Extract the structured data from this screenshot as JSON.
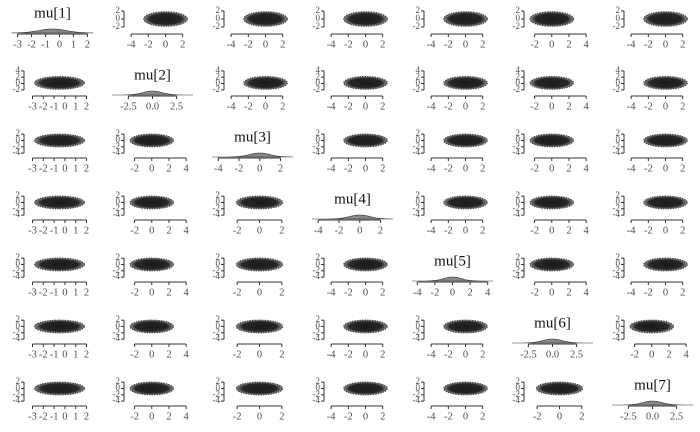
{
  "chart_data": [
    {
      "type": "density",
      "title": "mu[1]",
      "xlim": [
        -3.4,
        2.4
      ],
      "xticks": [
        -3,
        -2,
        -1,
        0,
        1,
        2
      ],
      "mean": -0.5,
      "sd": 1
    },
    {
      "type": "scatter",
      "xlim": [
        -4.6,
        3.2
      ],
      "xticks": [
        -4,
        -2,
        0,
        2
      ],
      "ylim": [
        -3,
        3
      ],
      "yticks": [
        -2,
        0,
        2
      ],
      "center": [
        0,
        0
      ],
      "spread": [
        1.1,
        0.9
      ]
    },
    {
      "type": "scatter",
      "xlim": [
        -4.6,
        3.2
      ],
      "xticks": [
        -4,
        -2,
        0,
        2
      ],
      "ylim": [
        -3,
        3
      ],
      "yticks": [
        -2,
        0,
        2
      ],
      "center": [
        0,
        0
      ],
      "spread": [
        1.1,
        0.9
      ]
    },
    {
      "type": "scatter",
      "xlim": [
        -4.6,
        3.2
      ],
      "xticks": [
        -4,
        -2,
        0,
        2
      ],
      "ylim": [
        -3,
        3
      ],
      "yticks": [
        -2,
        0,
        2
      ],
      "center": [
        0,
        0
      ],
      "spread": [
        1.1,
        0.9
      ]
    },
    {
      "type": "scatter",
      "xlim": [
        -4.6,
        3.2
      ],
      "xticks": [
        -4,
        -2,
        0,
        2
      ],
      "ylim": [
        -3,
        3
      ],
      "yticks": [
        -2,
        0,
        2
      ],
      "center": [
        0,
        0
      ],
      "spread": [
        1.1,
        0.9
      ]
    },
    {
      "type": "scatter",
      "xlim": [
        -3,
        4.8
      ],
      "xticks": [
        -2,
        0,
        2,
        4
      ],
      "ylim": [
        -3,
        3
      ],
      "yticks": [
        -2,
        0,
        2
      ],
      "center": [
        0,
        0
      ],
      "spread": [
        1.1,
        0.9
      ]
    },
    {
      "type": "scatter",
      "xlim": [
        -4.6,
        3.2
      ],
      "xticks": [
        -4,
        -2,
        0,
        2
      ],
      "ylim": [
        -3,
        3
      ],
      "yticks": [
        -2,
        0,
        2
      ],
      "center": [
        0,
        0
      ],
      "spread": [
        1.1,
        0.9
      ]
    },
    {
      "type": "scatter",
      "xlim": [
        -3.6,
        2.6
      ],
      "xticks": [
        -3,
        -2,
        -1,
        0,
        1,
        2
      ],
      "ylim": [
        -3,
        4.6
      ],
      "yticks": [
        -2,
        0,
        2,
        4
      ],
      "center": [
        -0.5,
        0.2
      ],
      "spread": [
        1,
        1
      ]
    },
    {
      "type": "density",
      "title": "mu[2]",
      "xlim": [
        -4.2,
        4.2
      ],
      "xticks": [
        -2.5,
        {
          "value": 0,
          "label": "0.0"
        },
        2.5
      ],
      "mean": 0,
      "sd": 1
    },
    {
      "type": "scatter",
      "xlim": [
        -4.6,
        3.2
      ],
      "xticks": [
        -4,
        -2,
        0,
        2
      ],
      "ylim": [
        -3,
        4.6
      ],
      "yticks": [
        -2,
        0,
        2,
        4
      ],
      "center": [
        0,
        0.2
      ],
      "spread": [
        1.1,
        1
      ]
    },
    {
      "type": "scatter",
      "xlim": [
        -4.6,
        3.2
      ],
      "xticks": [
        -4,
        -2,
        0,
        2
      ],
      "ylim": [
        -3,
        4.6
      ],
      "yticks": [
        -2,
        0,
        2,
        4
      ],
      "center": [
        0,
        0.2
      ],
      "spread": [
        1.1,
        1
      ]
    },
    {
      "type": "scatter",
      "xlim": [
        -4.6,
        3.2
      ],
      "xticks": [
        -4,
        -2,
        0,
        2
      ],
      "ylim": [
        -3,
        4.6
      ],
      "yticks": [
        -2,
        0,
        2,
        4
      ],
      "center": [
        0,
        0.2
      ],
      "spread": [
        1.1,
        1
      ]
    },
    {
      "type": "scatter",
      "xlim": [
        -3,
        4.8
      ],
      "xticks": [
        -2,
        0,
        2,
        4
      ],
      "ylim": [
        -3,
        4.6
      ],
      "yticks": [
        -2,
        0,
        2,
        4
      ],
      "center": [
        0,
        0.2
      ],
      "spread": [
        1.1,
        1
      ]
    },
    {
      "type": "scatter",
      "xlim": [
        -4.6,
        3.2
      ],
      "xticks": [
        -4,
        -2,
        0,
        2
      ],
      "ylim": [
        -3,
        4.6
      ],
      "yticks": [
        -2,
        0,
        2,
        4
      ],
      "center": [
        0,
        0.2
      ],
      "spread": [
        1.1,
        1
      ]
    },
    {
      "type": "scatter",
      "xlim": [
        -3.6,
        2.6
      ],
      "xticks": [
        -3,
        -2,
        -1,
        0,
        1,
        2
      ],
      "ylim": [
        -4.6,
        3
      ],
      "yticks": [
        -4,
        -2,
        0,
        2
      ],
      "center": [
        -0.5,
        0
      ],
      "spread": [
        1,
        1
      ]
    },
    {
      "type": "scatter",
      "xlim": [
        -3,
        4.8
      ],
      "xticks": [
        -2,
        0,
        2,
        4
      ],
      "ylim": [
        -4.6,
        3
      ],
      "yticks": [
        -4,
        -2,
        0,
        2
      ],
      "center": [
        0,
        0
      ],
      "spread": [
        1.1,
        1
      ]
    },
    {
      "type": "density",
      "title": "mu[3]",
      "xlim": [
        -4.6,
        3.2
      ],
      "xticks": [
        -4,
        -2,
        0,
        2
      ],
      "mean": 0,
      "sd": 1
    },
    {
      "type": "scatter",
      "xlim": [
        -4.6,
        3.2
      ],
      "xticks": [
        -4,
        -2,
        0,
        2
      ],
      "ylim": [
        -4.6,
        3
      ],
      "yticks": [
        -4,
        -2,
        0,
        2
      ],
      "center": [
        0,
        0
      ],
      "spread": [
        1.1,
        1
      ]
    },
    {
      "type": "scatter",
      "xlim": [
        -4.6,
        3.2
      ],
      "xticks": [
        -4,
        -2,
        0,
        2
      ],
      "ylim": [
        -4.6,
        3
      ],
      "yticks": [
        -4,
        -2,
        0,
        2
      ],
      "center": [
        0,
        0
      ],
      "spread": [
        1.1,
        1
      ]
    },
    {
      "type": "scatter",
      "xlim": [
        -3,
        4.8
      ],
      "xticks": [
        -2,
        0,
        2,
        4
      ],
      "ylim": [
        -4.6,
        3
      ],
      "yticks": [
        -4,
        -2,
        0,
        2
      ],
      "center": [
        0,
        0
      ],
      "spread": [
        1.1,
        1
      ]
    },
    {
      "type": "scatter",
      "xlim": [
        -4.6,
        3.2
      ],
      "xticks": [
        -4,
        -2,
        0,
        2
      ],
      "ylim": [
        -4.6,
        3
      ],
      "yticks": [
        -4,
        -2,
        0,
        2
      ],
      "center": [
        0,
        0
      ],
      "spread": [
        1.1,
        1
      ]
    },
    {
      "type": "scatter",
      "xlim": [
        -3.6,
        2.6
      ],
      "xticks": [
        -3,
        -2,
        -1,
        0,
        1,
        2
      ],
      "ylim": [
        -4.6,
        3
      ],
      "yticks": [
        -4,
        -2,
        0,
        2
      ],
      "center": [
        -0.5,
        0
      ],
      "spread": [
        1,
        1
      ]
    },
    {
      "type": "scatter",
      "xlim": [
        -3,
        4.8
      ],
      "xticks": [
        -2,
        0,
        2,
        4
      ],
      "ylim": [
        -4.6,
        3
      ],
      "yticks": [
        -4,
        -2,
        0,
        2
      ],
      "center": [
        0,
        0
      ],
      "spread": [
        1.1,
        1
      ]
    },
    {
      "type": "scatter",
      "xlim": [
        -3,
        3
      ],
      "xticks": [
        -2,
        0,
        2
      ],
      "ylim": [
        -4.6,
        3
      ],
      "yticks": [
        -4,
        -2,
        0,
        2
      ],
      "center": [
        0,
        0
      ],
      "spread": [
        0.9,
        1
      ]
    },
    {
      "type": "density",
      "title": "mu[4]",
      "xlim": [
        -4.6,
        3.2
      ],
      "xticks": [
        -4,
        -2,
        0,
        2
      ],
      "mean": 0,
      "sd": 1
    },
    {
      "type": "scatter",
      "xlim": [
        -4.6,
        3.2
      ],
      "xticks": [
        -4,
        -2,
        0,
        2
      ],
      "ylim": [
        -4.6,
        3
      ],
      "yticks": [
        -4,
        -2,
        0,
        2
      ],
      "center": [
        0,
        0
      ],
      "spread": [
        1.1,
        1
      ]
    },
    {
      "type": "scatter",
      "xlim": [
        -3,
        4.8
      ],
      "xticks": [
        -2,
        0,
        2,
        4
      ],
      "ylim": [
        -4.6,
        3
      ],
      "yticks": [
        -4,
        -2,
        0,
        2
      ],
      "center": [
        0,
        0
      ],
      "spread": [
        1.1,
        1
      ]
    },
    {
      "type": "scatter",
      "xlim": [
        -4.6,
        3.2
      ],
      "xticks": [
        -4,
        -2,
        0,
        2
      ],
      "ylim": [
        -4.6,
        3
      ],
      "yticks": [
        -4,
        -2,
        0,
        2
      ],
      "center": [
        0,
        0
      ],
      "spread": [
        1.1,
        1
      ]
    },
    {
      "type": "scatter",
      "xlim": [
        -3.6,
        2.6
      ],
      "xticks": [
        -3,
        -2,
        -1,
        0,
        1,
        2
      ],
      "ylim": [
        -4.6,
        3
      ],
      "yticks": [
        -4,
        -2,
        0,
        2
      ],
      "center": [
        -0.5,
        0
      ],
      "spread": [
        1,
        1
      ]
    },
    {
      "type": "scatter",
      "xlim": [
        -3,
        4.8
      ],
      "xticks": [
        -2,
        0,
        2,
        4
      ],
      "ylim": [
        -4.6,
        3
      ],
      "yticks": [
        -4,
        -2,
        0,
        2
      ],
      "center": [
        0,
        0
      ],
      "spread": [
        1.1,
        1
      ]
    },
    {
      "type": "scatter",
      "xlim": [
        -3,
        3
      ],
      "xticks": [
        -2,
        0,
        2
      ],
      "ylim": [
        -4.6,
        3
      ],
      "yticks": [
        -4,
        -2,
        0,
        2
      ],
      "center": [
        0,
        0
      ],
      "spread": [
        0.9,
        1
      ]
    },
    {
      "type": "scatter",
      "xlim": [
        -4.6,
        3.2
      ],
      "xticks": [
        -4,
        -2,
        0,
        2
      ],
      "ylim": [
        -4.6,
        3
      ],
      "yticks": [
        -4,
        -2,
        0,
        2
      ],
      "center": [
        0,
        0
      ],
      "spread": [
        1.1,
        1
      ]
    },
    {
      "type": "density",
      "title": "mu[5]",
      "xlim": [
        -4.6,
        4.6
      ],
      "xticks": [
        -4,
        -2,
        0,
        2,
        4
      ],
      "mean": 0,
      "sd": 1
    },
    {
      "type": "scatter",
      "xlim": [
        -3,
        4.8
      ],
      "xticks": [
        -2,
        0,
        2,
        4
      ],
      "ylim": [
        -4.6,
        3
      ],
      "yticks": [
        -4,
        -2,
        0,
        2
      ],
      "center": [
        0,
        0
      ],
      "spread": [
        1.1,
        1
      ]
    },
    {
      "type": "scatter",
      "xlim": [
        -4.6,
        3.2
      ],
      "xticks": [
        -4,
        -2,
        0,
        2
      ],
      "ylim": [
        -4.6,
        3
      ],
      "yticks": [
        -4,
        -2,
        0,
        2
      ],
      "center": [
        0,
        0
      ],
      "spread": [
        1.1,
        1
      ]
    },
    {
      "type": "scatter",
      "xlim": [
        -3.6,
        2.6
      ],
      "xticks": [
        -3,
        -2,
        -1,
        0,
        1,
        2
      ],
      "ylim": [
        -4.6,
        3
      ],
      "yticks": [
        -4,
        -2,
        0,
        2
      ],
      "center": [
        -0.5,
        0
      ],
      "spread": [
        1,
        1
      ]
    },
    {
      "type": "scatter",
      "xlim": [
        -3,
        4.8
      ],
      "xticks": [
        -2,
        0,
        2,
        4
      ],
      "ylim": [
        -4.6,
        3
      ],
      "yticks": [
        -4,
        -2,
        0,
        2
      ],
      "center": [
        0,
        0
      ],
      "spread": [
        1.1,
        1
      ]
    },
    {
      "type": "scatter",
      "xlim": [
        -3,
        3
      ],
      "xticks": [
        -2,
        0,
        2
      ],
      "ylim": [
        -4.6,
        3
      ],
      "yticks": [
        -4,
        -2,
        0,
        2
      ],
      "center": [
        0,
        0
      ],
      "spread": [
        0.9,
        1
      ]
    },
    {
      "type": "scatter",
      "xlim": [
        -4.6,
        3.2
      ],
      "xticks": [
        -4,
        -2,
        0,
        2
      ],
      "ylim": [
        -4.6,
        3
      ],
      "yticks": [
        -4,
        -2,
        0,
        2
      ],
      "center": [
        0,
        0
      ],
      "spread": [
        1.1,
        1
      ]
    },
    {
      "type": "scatter",
      "xlim": [
        -4.6,
        3.2
      ],
      "xticks": [
        -4,
        -2,
        0,
        2
      ],
      "ylim": [
        -4.6,
        3
      ],
      "yticks": [
        -4,
        -2,
        0,
        2
      ],
      "center": [
        0,
        0
      ],
      "spread": [
        1.1,
        1
      ]
    },
    {
      "type": "density",
      "title": "mu[6]",
      "xlim": [
        -4.2,
        4.2
      ],
      "xticks": [
        -2.5,
        {
          "value": 0,
          "label": "0.0"
        },
        2.5
      ],
      "mean": 0,
      "sd": 1
    },
    {
      "type": "scatter",
      "xlim": [
        -3,
        4.8
      ],
      "xticks": [
        -2,
        0,
        2,
        4
      ],
      "ylim": [
        -4.6,
        3
      ],
      "yticks": [
        -4,
        -2,
        0,
        2
      ],
      "center": [
        0,
        0
      ],
      "spread": [
        1.1,
        1
      ]
    },
    {
      "type": "scatter",
      "xlim": [
        -3.6,
        2.6
      ],
      "xticks": [
        -3,
        -2,
        -1,
        0,
        1,
        2
      ],
      "ylim": [
        -4.6,
        3
      ],
      "yticks": [
        -4,
        -2,
        0,
        2
      ],
      "center": [
        -0.5,
        0
      ],
      "spread": [
        1,
        1
      ]
    },
    {
      "type": "scatter",
      "xlim": [
        -3,
        4.8
      ],
      "xticks": [
        -2,
        0,
        2,
        4
      ],
      "ylim": [
        -4.6,
        3
      ],
      "yticks": [
        -4,
        -2,
        0,
        2
      ],
      "center": [
        0,
        0
      ],
      "spread": [
        1.1,
        1
      ]
    },
    {
      "type": "scatter",
      "xlim": [
        -3,
        3
      ],
      "xticks": [
        -2,
        0,
        2
      ],
      "ylim": [
        -4.6,
        3
      ],
      "yticks": [
        -4,
        -2,
        0,
        2
      ],
      "center": [
        0,
        0
      ],
      "spread": [
        0.9,
        1
      ]
    },
    {
      "type": "scatter",
      "xlim": [
        -4.6,
        3.2
      ],
      "xticks": [
        -4,
        -2,
        0,
        2
      ],
      "ylim": [
        -4.6,
        3
      ],
      "yticks": [
        -4,
        -2,
        0,
        2
      ],
      "center": [
        0,
        0
      ],
      "spread": [
        1.1,
        1
      ]
    },
    {
      "type": "scatter",
      "xlim": [
        -4.6,
        3.2
      ],
      "xticks": [
        -4,
        -2,
        0,
        2
      ],
      "ylim": [
        -4.6,
        3
      ],
      "yticks": [
        -4,
        -2,
        0,
        2
      ],
      "center": [
        0,
        0
      ],
      "spread": [
        1.1,
        1
      ]
    },
    {
      "type": "scatter",
      "xlim": [
        -3,
        3
      ],
      "xticks": [
        -2,
        0,
        2
      ],
      "ylim": [
        -4.6,
        3
      ],
      "yticks": [
        -4,
        -2,
        0,
        2
      ],
      "center": [
        0,
        0
      ],
      "spread": [
        0.9,
        1
      ]
    },
    {
      "type": "density",
      "title": "mu[7]",
      "xlim": [
        -4.2,
        4.2
      ],
      "xticks": [
        -2.5,
        {
          "value": 0,
          "label": "0.0"
        },
        2.5
      ],
      "mean": 0,
      "sd": 1
    }
  ]
}
